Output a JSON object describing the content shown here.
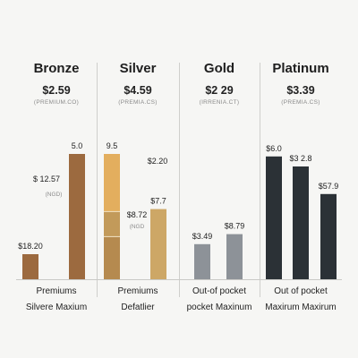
{
  "colors": {
    "bronze": "#9c6a3f",
    "silver": "#e3ae5e",
    "silver_mid": "#c29a5a",
    "silver_low": "#b58a4f",
    "silver_right": "#cda766",
    "gold": "#8d9298",
    "platinum": "#2b3136"
  },
  "chart_data": {
    "type": "bar",
    "title": "",
    "xlabel": "",
    "ylabel": "",
    "ylim": [
      0,
      6
    ],
    "grid": false,
    "legend": "none",
    "panels": [
      {
        "tier": "Bronze",
        "price": "$2.59",
        "price_sub": "(PREMIUM.CO)",
        "footer_line1": "Premiums",
        "footer_line2": "Silvere Maxium",
        "bars": [
          {
            "value": 1.0,
            "color_key": "bronze",
            "labels": [
              "$18.20"
            ]
          },
          {
            "value": 5.0,
            "color_key": "bronze",
            "labels": [
              "5.0"
            ]
          }
        ],
        "side_labels": [
          "$ 12.57",
          "(NGD)"
        ]
      },
      {
        "tier": "Silver",
        "price": "$4.59",
        "price_sub": "(PREMIA.CS)",
        "footer_line1": "Premiums",
        "footer_line2": "Defatlier",
        "bars": [
          {
            "value": 5.0,
            "segments": [
              1.7,
              1.0,
              2.3
            ],
            "segment_colors": [
              "silver_low",
              "silver_mid",
              "silver"
            ],
            "labels": [
              "9.5"
            ]
          },
          {
            "value": 2.8,
            "color_key": "silver_right",
            "labels": [
              "$7.7"
            ]
          }
        ],
        "side_labels": [
          "$2.20",
          "$8.72",
          "(NGD"
        ]
      },
      {
        "tier": "Gold",
        "price": "$2 29",
        "price_sub": "(IRRENIA.CT)",
        "footer_line1": "Out-of pocket",
        "footer_line2": "pocket Maxinum",
        "bars": [
          {
            "value": 1.4,
            "color_key": "gold",
            "labels": [
              "$3.49"
            ]
          },
          {
            "value": 1.8,
            "color_key": "gold",
            "labels": [
              "$8.79"
            ]
          }
        ],
        "side_labels": []
      },
      {
        "tier": "Platinum",
        "price": "$3.39",
        "price_sub": "(PREMIA.CS)",
        "footer_line1": "Out of pocket",
        "footer_line2": "Maxirum Maxirum",
        "bars": [
          {
            "value": 4.9,
            "color_key": "platinum",
            "labels": [
              "$6.0"
            ]
          },
          {
            "value": 4.5,
            "color_key": "platinum",
            "labels": [
              "$3 2.8"
            ]
          },
          {
            "value": 3.4,
            "color_key": "platinum",
            "labels": [
              "$57.9"
            ]
          }
        ],
        "side_labels": []
      }
    ]
  }
}
